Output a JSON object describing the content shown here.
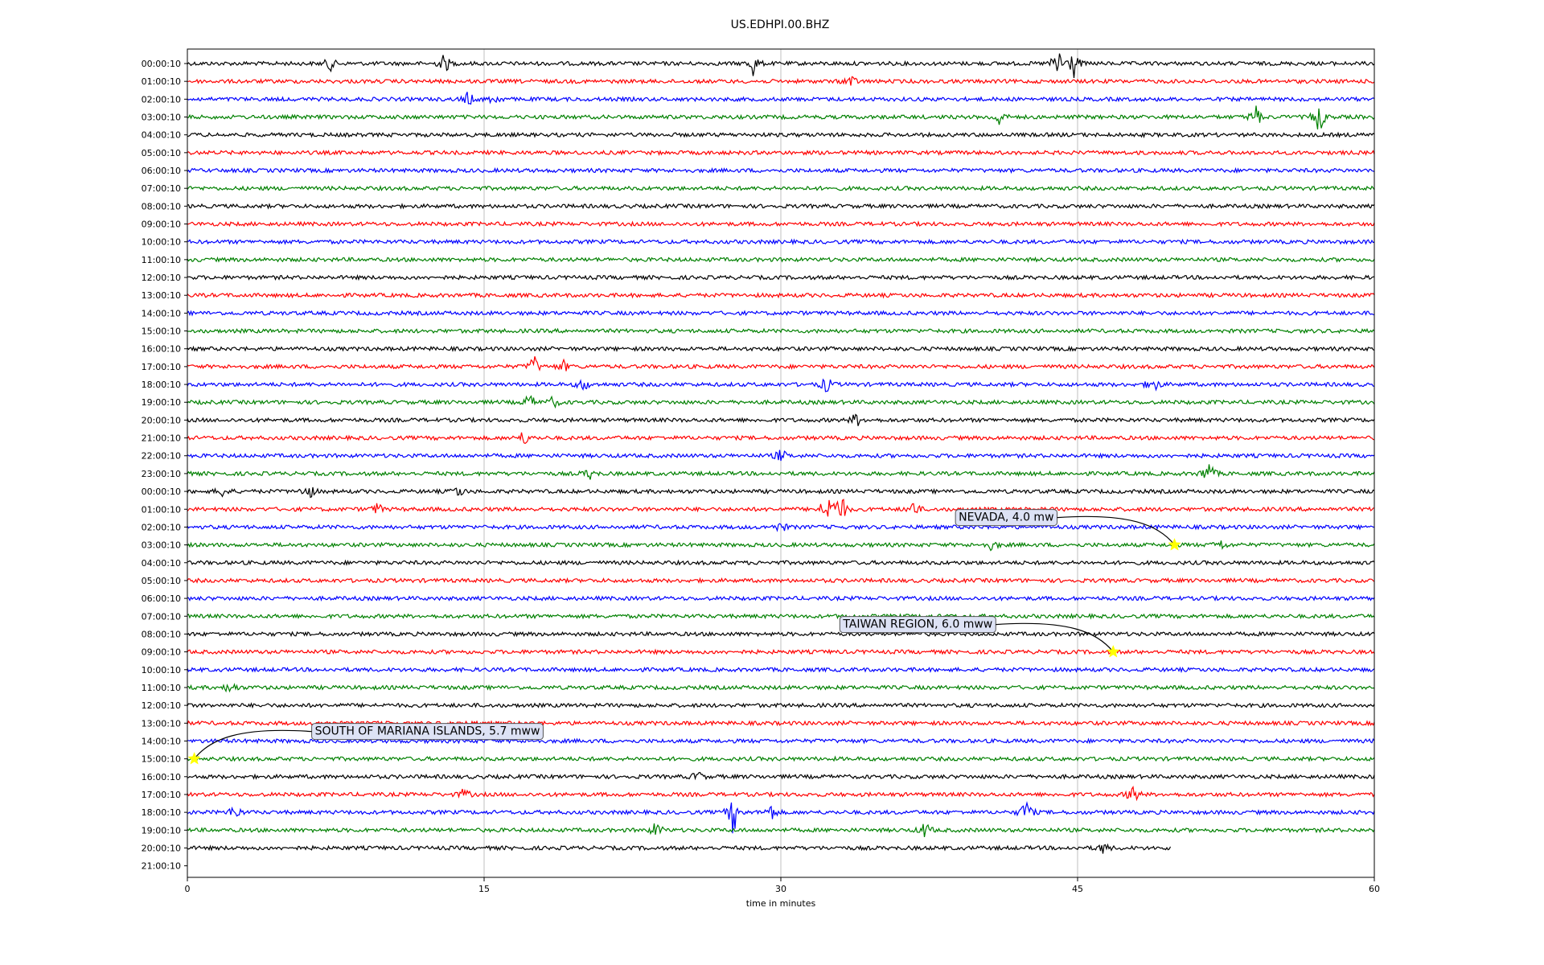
{
  "chart_data": {
    "type": "line",
    "title": "US.EDHPI.00.BHZ",
    "xlabel": "time in minutes",
    "ylabel": "",
    "xlim": [
      0,
      60
    ],
    "xticks": [
      0,
      15,
      30,
      45,
      60
    ],
    "xtick_labels": [
      "0",
      "15",
      "30",
      "45",
      "60"
    ],
    "grid": "vertical lines at x ticks",
    "trace_colors": [
      "#000000",
      "#ff0000",
      "#0000ff",
      "#008000"
    ],
    "row_labels": [
      "00:00:10",
      "01:00:10",
      "02:00:10",
      "03:00:10",
      "04:00:10",
      "05:00:10",
      "06:00:10",
      "07:00:10",
      "08:00:10",
      "09:00:10",
      "10:00:10",
      "11:00:10",
      "12:00:10",
      "13:00:10",
      "14:00:10",
      "15:00:10",
      "16:00:10",
      "17:00:10",
      "18:00:10",
      "19:00:10",
      "20:00:10",
      "21:00:10",
      "22:00:10",
      "23:00:10",
      "00:00:10",
      "01:00:10",
      "02:00:10",
      "03:00:10",
      "04:00:10",
      "05:00:10",
      "06:00:10",
      "07:00:10",
      "08:00:10",
      "09:00:10",
      "10:00:10",
      "11:00:10",
      "12:00:10",
      "13:00:10",
      "14:00:10",
      "15:00:10",
      "16:00:10",
      "17:00:10",
      "18:00:10",
      "19:00:10",
      "20:00:10",
      "21:00:10"
    ],
    "last_trace_end_minutes": 49.7,
    "bursts": [
      {
        "row": 0,
        "x": 7.2,
        "amp": 0.5
      },
      {
        "row": 0,
        "x": 13.0,
        "amp": 0.7
      },
      {
        "row": 0,
        "x": 28.6,
        "amp": 0.8
      },
      {
        "row": 0,
        "x": 44.0,
        "amp": 1.4
      },
      {
        "row": 0,
        "x": 44.8,
        "amp": 1.0
      },
      {
        "row": 1,
        "x": 33.5,
        "amp": 0.5
      },
      {
        "row": 2,
        "x": 14.2,
        "amp": 0.5
      },
      {
        "row": 2,
        "x": 15.5,
        "amp": 0.4
      },
      {
        "row": 3,
        "x": 41.0,
        "amp": 0.6
      },
      {
        "row": 3,
        "x": 54.0,
        "amp": 0.9
      },
      {
        "row": 3,
        "x": 57.2,
        "amp": 1.2
      },
      {
        "row": 17,
        "x": 17.5,
        "amp": 0.8
      },
      {
        "row": 17,
        "x": 19.0,
        "amp": 0.4
      },
      {
        "row": 18,
        "x": 20.0,
        "amp": 0.5
      },
      {
        "row": 18,
        "x": 32.3,
        "amp": 0.6
      },
      {
        "row": 18,
        "x": 48.8,
        "amp": 0.7
      },
      {
        "row": 19,
        "x": 17.3,
        "amp": 0.6
      },
      {
        "row": 19,
        "x": 18.5,
        "amp": 0.4
      },
      {
        "row": 20,
        "x": 33.8,
        "amp": 0.5
      },
      {
        "row": 21,
        "x": 17.0,
        "amp": 0.5
      },
      {
        "row": 22,
        "x": 30.0,
        "amp": 0.5
      },
      {
        "row": 23,
        "x": 20.3,
        "amp": 0.4
      },
      {
        "row": 23,
        "x": 51.6,
        "amp": 1.0
      },
      {
        "row": 24,
        "x": 1.8,
        "amp": 0.4
      },
      {
        "row": 24,
        "x": 6.1,
        "amp": 0.7
      },
      {
        "row": 24,
        "x": 13.7,
        "amp": 0.4
      },
      {
        "row": 25,
        "x": 9.6,
        "amp": 0.4
      },
      {
        "row": 25,
        "x": 32.3,
        "amp": 1.3
      },
      {
        "row": 25,
        "x": 33.0,
        "amp": 1.4
      },
      {
        "row": 25,
        "x": 36.7,
        "amp": 0.6
      },
      {
        "row": 26,
        "x": 30.0,
        "amp": 0.4
      },
      {
        "row": 27,
        "x": 40.7,
        "amp": 0.4
      },
      {
        "row": 27,
        "x": 52.2,
        "amp": 0.4
      },
      {
        "row": 35,
        "x": 2.2,
        "amp": 0.5
      },
      {
        "row": 40,
        "x": 25.8,
        "amp": 0.4
      },
      {
        "row": 41,
        "x": 14.0,
        "amp": 0.4
      },
      {
        "row": 41,
        "x": 47.8,
        "amp": 0.7
      },
      {
        "row": 42,
        "x": 2.4,
        "amp": 0.6
      },
      {
        "row": 42,
        "x": 27.6,
        "amp": 1.5
      },
      {
        "row": 42,
        "x": 29.5,
        "amp": 0.6
      },
      {
        "row": 42,
        "x": 42.4,
        "amp": 1.0
      },
      {
        "row": 43,
        "x": 23.7,
        "amp": 0.6
      },
      {
        "row": 43,
        "x": 37.3,
        "amp": 0.6
      },
      {
        "row": 44,
        "x": 46.3,
        "amp": 0.4
      }
    ],
    "annotations": [
      {
        "text": "NEVADA, 4.0 mw",
        "row": 27,
        "x": 49.9,
        "box_color": "#dde2f5"
      },
      {
        "text": "TAIWAN REGION, 6.0 mww",
        "row": 33,
        "x": 46.8,
        "box_color": "#dde2f5"
      },
      {
        "text": "SOUTH OF MARIANA ISLANDS, 5.7 mww",
        "row": 39,
        "x": 0.35,
        "box_color": "#dde2f5"
      }
    ],
    "marker": {
      "shape": "star",
      "color": "#ffff00"
    }
  }
}
